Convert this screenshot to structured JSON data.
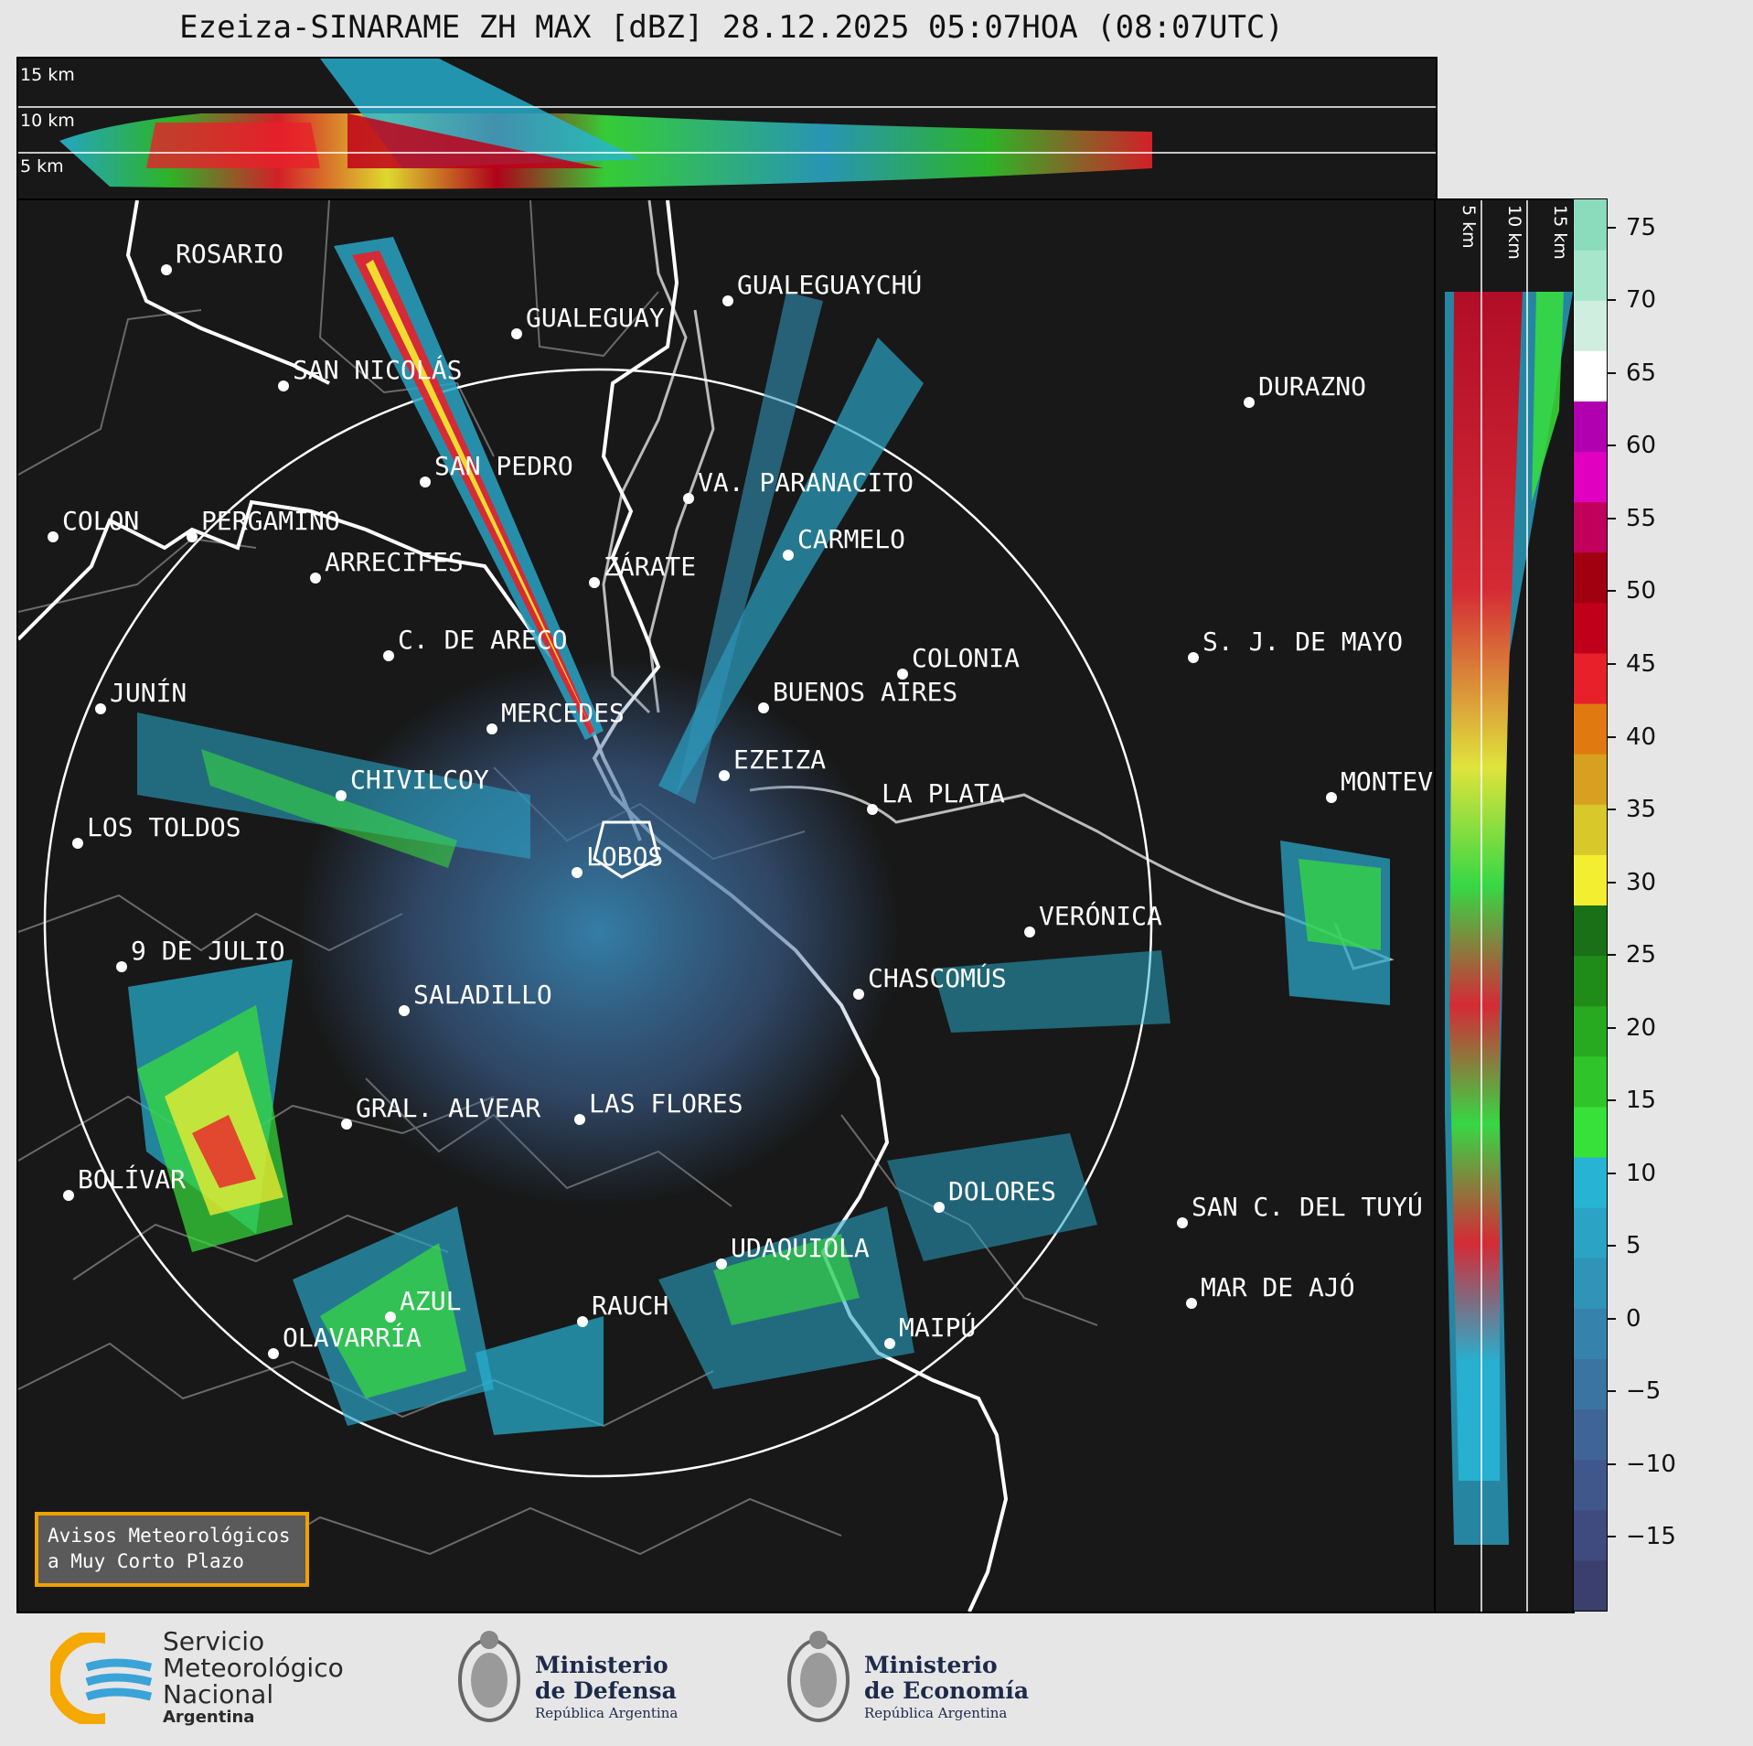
{
  "title": "Ezeiza-SINARAME ZH MAX [dBZ] 28.12.2025 05:07HOA (08:07UTC)",
  "top_panel": {
    "height_labels": [
      "15 km",
      "10 km",
      "5 km"
    ]
  },
  "side_panel": {
    "height_labels": [
      "5 km",
      "10 km",
      "15 km"
    ]
  },
  "cities": [
    {
      "name": "ROSARIO"
    },
    {
      "name": "GUALEGUAYCHÚ"
    },
    {
      "name": "GUALEGUAY"
    },
    {
      "name": "SAN NICOLÁS"
    },
    {
      "name": "DURAZNO"
    },
    {
      "name": "SAN PEDRO"
    },
    {
      "name": "VA. PARANACITO"
    },
    {
      "name": "COLON"
    },
    {
      "name": "PERGAMINO"
    },
    {
      "name": "CARMELO"
    },
    {
      "name": "ARRECIFES"
    },
    {
      "name": "ZÁRATE"
    },
    {
      "name": "S. J. DE MAYO"
    },
    {
      "name": "C. DE ARECO"
    },
    {
      "name": "COLONIA"
    },
    {
      "name": "JUNÍN"
    },
    {
      "name": "BUENOS AIRES"
    },
    {
      "name": "MERCEDES"
    },
    {
      "name": "MONTEVIDEO"
    },
    {
      "name": "EZEIZA"
    },
    {
      "name": "CHIVILCOY"
    },
    {
      "name": "LA PLATA"
    },
    {
      "name": "LOS TOLDOS"
    },
    {
      "name": "LOBOS"
    },
    {
      "name": "VERÓNICA"
    },
    {
      "name": "9 DE JULIO"
    },
    {
      "name": "CHASCOMÚS"
    },
    {
      "name": "SALADILLO"
    },
    {
      "name": "GRAL. ALVEAR"
    },
    {
      "name": "LAS FLORES"
    },
    {
      "name": "BOLÍVAR"
    },
    {
      "name": "DOLORES"
    },
    {
      "name": "SAN C. DEL TUYÚ"
    },
    {
      "name": "UDAQUIOLA"
    },
    {
      "name": "AZUL"
    },
    {
      "name": "RAUCH"
    },
    {
      "name": "MAR DE AJÓ"
    },
    {
      "name": "OLAVARRÍA"
    },
    {
      "name": "MAIPÚ"
    }
  ],
  "colorbar": {
    "unit": "dBZ",
    "ticks": [
      "75",
      "70",
      "65",
      "60",
      "55",
      "50",
      "45",
      "40",
      "35",
      "30",
      "25",
      "20",
      "15",
      "10",
      "5",
      "0",
      "−5",
      "−10",
      "−15"
    ],
    "min": -20,
    "max": 77,
    "colors": [
      "#3a3f6e",
      "#3f4a7e",
      "#40578c",
      "#3f6597",
      "#3a74a2",
      "#3583ad",
      "#3093b8",
      "#2aa3c4",
      "#27b4d4",
      "#38e03a",
      "#2fc52a",
      "#27a920",
      "#1f8c1a",
      "#1a7016",
      "#f4ee30",
      "#d8c82a",
      "#d8a020",
      "#e07a10",
      "#e8202a",
      "#c0001a",
      "#a00010",
      "#c0005a",
      "#e000c0",
      "#b000b0",
      "#ffffff",
      "#cfeee0",
      "#a8e6cc",
      "#8adcbc"
    ]
  },
  "avisos": {
    "line1": "Avisos Meteorológicos",
    "line2": "a Muy Corto Plazo"
  },
  "footer": {
    "smn_line1": "Servicio",
    "smn_line2": "Meteorológico",
    "smn_line3": "Nacional",
    "smn_sub": "Argentina",
    "defensa_line1": "Ministerio",
    "defensa_line2": "de Defensa",
    "defensa_sub": "República Argentina",
    "economia_line1": "Ministerio",
    "economia_line2": "de Economía",
    "economia_sub": "República Argentina"
  }
}
